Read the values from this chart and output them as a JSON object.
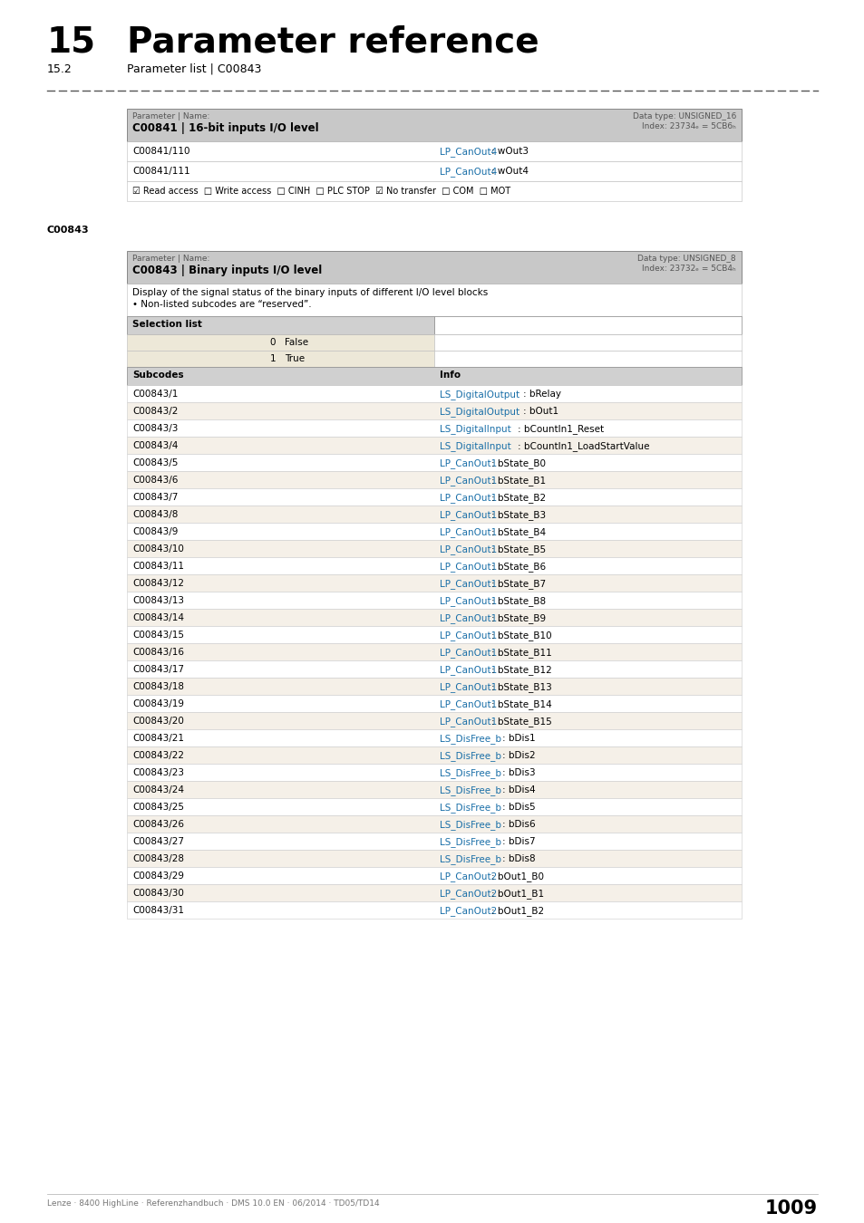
{
  "page_num": "1009",
  "chapter_num": "15",
  "chapter_title": "Parameter reference",
  "section_num": "15.2",
  "section_title": "Parameter list | C00843",
  "footer_text": "Lenze · 8400 HighLine · Referenzhandbuch · DMS 10.0 EN · 06/2014 · TD05/TD14",
  "c00841_header_left": "Parameter | Name:",
  "c00841_header_bold": "C00841 | 16-bit inputs I/O level",
  "c00841_header_right_top": "Data type: UNSIGNED_16",
  "c00841_header_right_bot": "Index: 23734ₑ = 5CB6ₕ",
  "c00841_rows": [
    [
      "C00841/110",
      "LP_CanOut4",
      ": wOut3"
    ],
    [
      "C00841/111",
      "LP_CanOut4",
      ": wOut4"
    ]
  ],
  "c00841_access": "☑ Read access  □ Write access  □ CINH  □ PLC STOP  ☑ No transfer  □ COM  □ MOT",
  "c00843_label": "C00843",
  "c00843_header_left": "Parameter | Name:",
  "c00843_header_bold": "C00843 | Binary inputs I/O level",
  "c00843_header_right_top": "Data type: UNSIGNED_8",
  "c00843_header_right_bot": "Index: 23732ₑ = 5CB4ₕ",
  "c00843_desc1": "Display of the signal status of the binary inputs of different I/O level blocks",
  "c00843_desc2": "• Non-listed subcodes are “reserved”.",
  "selection_list_header": "Selection list",
  "selection_rows": [
    [
      "0",
      "False"
    ],
    [
      "1",
      "True"
    ]
  ],
  "subcodes_header": [
    "Subcodes",
    "Info"
  ],
  "subcodes_rows": [
    [
      "C00843/1",
      "LS_DigitalOutput",
      ": bRelay"
    ],
    [
      "C00843/2",
      "LS_DigitalOutput",
      ": bOut1"
    ],
    [
      "C00843/3",
      "LS_DigitalInput",
      ": bCountIn1_Reset"
    ],
    [
      "C00843/4",
      "LS_DigitalInput",
      ": bCountIn1_LoadStartValue"
    ],
    [
      "C00843/5",
      "LP_CanOut1",
      ": bState_B0"
    ],
    [
      "C00843/6",
      "LP_CanOut1",
      ": bState_B1"
    ],
    [
      "C00843/7",
      "LP_CanOut1",
      ": bState_B2"
    ],
    [
      "C00843/8",
      "LP_CanOut1",
      ": bState_B3"
    ],
    [
      "C00843/9",
      "LP_CanOut1",
      ": bState_B4"
    ],
    [
      "C00843/10",
      "LP_CanOut1",
      ": bState_B5"
    ],
    [
      "C00843/11",
      "LP_CanOut1",
      ": bState_B6"
    ],
    [
      "C00843/12",
      "LP_CanOut1",
      ": bState_B7"
    ],
    [
      "C00843/13",
      "LP_CanOut1",
      ": bState_B8"
    ],
    [
      "C00843/14",
      "LP_CanOut1",
      ": bState_B9"
    ],
    [
      "C00843/15",
      "LP_CanOut1",
      ": bState_B10"
    ],
    [
      "C00843/16",
      "LP_CanOut1",
      ": bState_B11"
    ],
    [
      "C00843/17",
      "LP_CanOut1",
      ": bState_B12"
    ],
    [
      "C00843/18",
      "LP_CanOut1",
      ": bState_B13"
    ],
    [
      "C00843/19",
      "LP_CanOut1",
      ": bState_B14"
    ],
    [
      "C00843/20",
      "LP_CanOut1",
      ": bState_B15"
    ],
    [
      "C00843/21",
      "LS_DisFree_b",
      ": bDis1"
    ],
    [
      "C00843/22",
      "LS_DisFree_b",
      ": bDis2"
    ],
    [
      "C00843/23",
      "LS_DisFree_b",
      ": bDis3"
    ],
    [
      "C00843/24",
      "LS_DisFree_b",
      ": bDis4"
    ],
    [
      "C00843/25",
      "LS_DisFree_b",
      ": bDis5"
    ],
    [
      "C00843/26",
      "LS_DisFree_b",
      ": bDis6"
    ],
    [
      "C00843/27",
      "LS_DisFree_b",
      ": bDis7"
    ],
    [
      "C00843/28",
      "LS_DisFree_b",
      ": bDis8"
    ],
    [
      "C00843/29",
      "LP_CanOut2",
      ": bOut1_B0"
    ],
    [
      "C00843/30",
      "LP_CanOut2",
      ": bOut1_B1"
    ],
    [
      "C00843/31",
      "LP_CanOut2",
      ": bOut1_B2"
    ]
  ],
  "colors": {
    "header_bg": "#c8c8c8",
    "row_bg_white": "#ffffff",
    "row_bg_light": "#f5f0e8",
    "border": "#999999",
    "link_blue": "#1a6fa8",
    "text_black": "#000000",
    "selection_bg": "#ede8d8",
    "subheader_bg": "#d0d0d0"
  }
}
